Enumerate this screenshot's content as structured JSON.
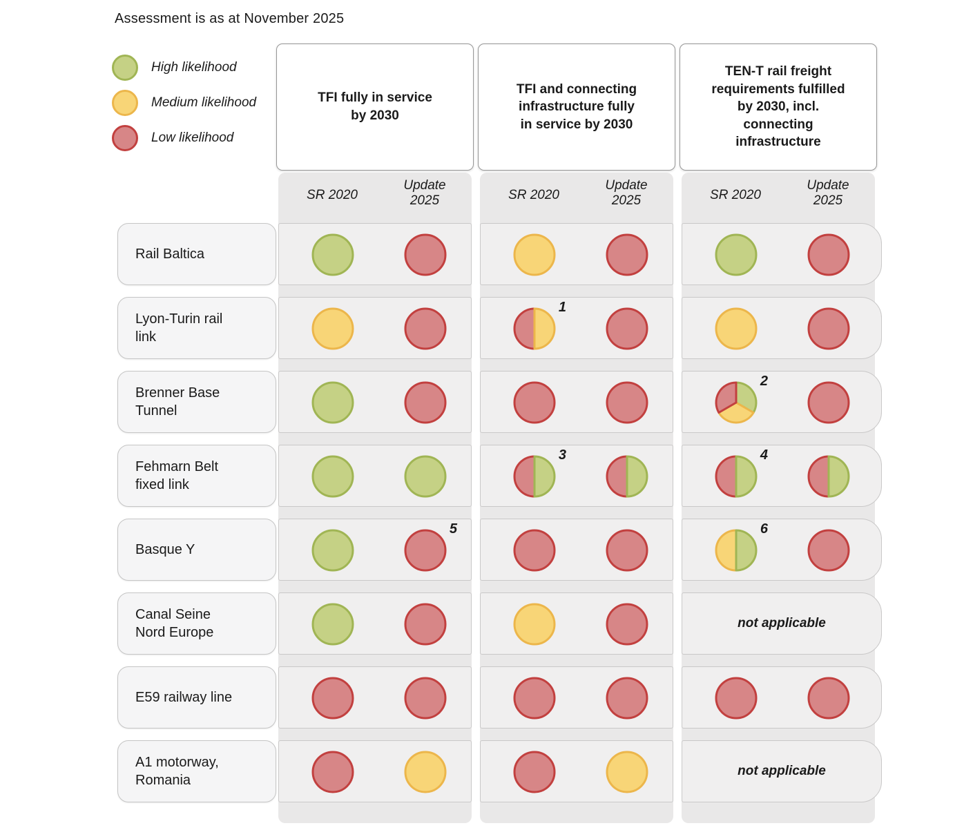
{
  "title": "Assessment is as at November 2025",
  "legend": [
    {
      "color_key": "green",
      "label": "High likelihood"
    },
    {
      "color_key": "yellow",
      "label": "Medium likelihood"
    },
    {
      "color_key": "red",
      "label": "Low likelihood"
    }
  ],
  "colors": {
    "green": {
      "fill": "#c5d185",
      "stroke": "#a0b554"
    },
    "yellow": {
      "fill": "#f8d577",
      "stroke": "#ecb64b"
    },
    "red": {
      "fill": "#d78687",
      "stroke": "#c2403f"
    }
  },
  "column_groups": [
    {
      "title": "TFI fully in service\nby 2030",
      "subcolumns": [
        "SR 2020",
        "Update\n2025"
      ]
    },
    {
      "title": "TFI and connecting\ninfrastructure fully\nin service by 2030",
      "subcolumns": [
        "SR 2020",
        "Update\n2025"
      ]
    },
    {
      "title": "TEN-T rail freight\nrequirements fulfilled\nby 2030, incl.\nconnecting\ninfrastructure",
      "subcolumns": [
        "SR 2020",
        "Update\n2025"
      ]
    }
  ],
  "not_applicable_label": "not applicable",
  "rows": [
    {
      "label": "Rail Baltica",
      "groups": [
        {
          "cells": [
            {
              "type": "full",
              "segments": [
                "green"
              ]
            },
            {
              "type": "full",
              "segments": [
                "red"
              ]
            }
          ]
        },
        {
          "cells": [
            {
              "type": "full",
              "segments": [
                "yellow"
              ]
            },
            {
              "type": "full",
              "segments": [
                "red"
              ]
            }
          ]
        },
        {
          "cells": [
            {
              "type": "full",
              "segments": [
                "green"
              ]
            },
            {
              "type": "full",
              "segments": [
                "red"
              ]
            }
          ]
        }
      ]
    },
    {
      "label": "Lyon-Turin rail\nlink",
      "groups": [
        {
          "cells": [
            {
              "type": "full",
              "segments": [
                "yellow"
              ]
            },
            {
              "type": "full",
              "segments": [
                "red"
              ]
            }
          ]
        },
        {
          "cells": [
            {
              "type": "half",
              "segments": [
                "red",
                "yellow"
              ],
              "note": "1"
            },
            {
              "type": "full",
              "segments": [
                "red"
              ]
            }
          ]
        },
        {
          "cells": [
            {
              "type": "full",
              "segments": [
                "yellow"
              ]
            },
            {
              "type": "full",
              "segments": [
                "red"
              ]
            }
          ]
        }
      ]
    },
    {
      "label": "Brenner Base\nTunnel",
      "groups": [
        {
          "cells": [
            {
              "type": "full",
              "segments": [
                "green"
              ]
            },
            {
              "type": "full",
              "segments": [
                "red"
              ]
            }
          ]
        },
        {
          "cells": [
            {
              "type": "full",
              "segments": [
                "red"
              ]
            },
            {
              "type": "full",
              "segments": [
                "red"
              ]
            }
          ]
        },
        {
          "cells": [
            {
              "type": "thirds",
              "segments": [
                "green",
                "yellow",
                "red"
              ],
              "note": "2"
            },
            {
              "type": "full",
              "segments": [
                "red"
              ]
            }
          ]
        }
      ]
    },
    {
      "label": "Fehmarn Belt\nfixed link",
      "groups": [
        {
          "cells": [
            {
              "type": "full",
              "segments": [
                "green"
              ]
            },
            {
              "type": "full",
              "segments": [
                "green"
              ]
            }
          ]
        },
        {
          "cells": [
            {
              "type": "half",
              "segments": [
                "red",
                "green"
              ],
              "note": "3"
            },
            {
              "type": "half",
              "segments": [
                "red",
                "green"
              ]
            }
          ]
        },
        {
          "cells": [
            {
              "type": "half",
              "segments": [
                "red",
                "green"
              ],
              "note": "4"
            },
            {
              "type": "half",
              "segments": [
                "red",
                "green"
              ]
            }
          ]
        }
      ]
    },
    {
      "label": "Basque Y",
      "groups": [
        {
          "cells": [
            {
              "type": "full",
              "segments": [
                "green"
              ]
            },
            {
              "type": "full",
              "segments": [
                "red"
              ],
              "note": "5"
            }
          ]
        },
        {
          "cells": [
            {
              "type": "full",
              "segments": [
                "red"
              ]
            },
            {
              "type": "full",
              "segments": [
                "red"
              ]
            }
          ]
        },
        {
          "cells": [
            {
              "type": "half",
              "segments": [
                "yellow",
                "green"
              ],
              "note": "6"
            },
            {
              "type": "full",
              "segments": [
                "red"
              ]
            }
          ]
        }
      ]
    },
    {
      "label": "Canal Seine\nNord Europe",
      "groups": [
        {
          "cells": [
            {
              "type": "full",
              "segments": [
                "green"
              ]
            },
            {
              "type": "full",
              "segments": [
                "red"
              ]
            }
          ]
        },
        {
          "cells": [
            {
              "type": "full",
              "segments": [
                "yellow"
              ]
            },
            {
              "type": "full",
              "segments": [
                "red"
              ]
            }
          ]
        },
        {
          "na": true
        }
      ]
    },
    {
      "label": "E59 railway line",
      "groups": [
        {
          "cells": [
            {
              "type": "full",
              "segments": [
                "red"
              ]
            },
            {
              "type": "full",
              "segments": [
                "red"
              ]
            }
          ]
        },
        {
          "cells": [
            {
              "type": "full",
              "segments": [
                "red"
              ]
            },
            {
              "type": "full",
              "segments": [
                "red"
              ]
            }
          ]
        },
        {
          "cells": [
            {
              "type": "full",
              "segments": [
                "red"
              ]
            },
            {
              "type": "full",
              "segments": [
                "red"
              ]
            }
          ]
        }
      ]
    },
    {
      "label": "A1 motorway,\nRomania",
      "groups": [
        {
          "cells": [
            {
              "type": "full",
              "segments": [
                "red"
              ]
            },
            {
              "type": "full",
              "segments": [
                "yellow"
              ]
            }
          ]
        },
        {
          "cells": [
            {
              "type": "full",
              "segments": [
                "red"
              ]
            },
            {
              "type": "full",
              "segments": [
                "yellow"
              ]
            }
          ]
        },
        {
          "na": true
        }
      ]
    }
  ],
  "chart_data": {
    "type": "table",
    "title": "Assessment is as at November 2025",
    "legend": {
      "green": "High likelihood",
      "yellow": "Medium likelihood",
      "red": "Low likelihood"
    },
    "columns": [
      "TFI fully in service by 2030 — SR 2020",
      "TFI fully in service by 2030 — Update 2025",
      "TFI and connecting infrastructure fully in service by 2030 — SR 2020",
      "TFI and connecting infrastructure fully in service by 2030 — Update 2025",
      "TEN-T rail freight requirements fulfilled by 2030, incl. connecting infrastructure — SR 2020",
      "TEN-T rail freight requirements fulfilled by 2030, incl. connecting infrastructure — Update 2025"
    ],
    "rows": [
      {
        "project": "Rail Baltica",
        "values": [
          "high",
          "low",
          "medium",
          "low",
          "high",
          "low"
        ]
      },
      {
        "project": "Lyon-Turin rail link",
        "values": [
          "medium",
          "low",
          "low/medium [1]",
          "low",
          "medium",
          "low"
        ]
      },
      {
        "project": "Brenner Base Tunnel",
        "values": [
          "high",
          "low",
          "low",
          "low",
          "high/medium/low [2]",
          "low"
        ]
      },
      {
        "project": "Fehmarn Belt fixed link",
        "values": [
          "high",
          "high",
          "low/high [3]",
          "low/high",
          "low/high [4]",
          "low/high"
        ]
      },
      {
        "project": "Basque Y",
        "values": [
          "high",
          "low [5]",
          "low",
          "low",
          "medium/high [6]",
          "low"
        ]
      },
      {
        "project": "Canal Seine Nord Europe",
        "values": [
          "high",
          "low",
          "medium",
          "low",
          "not applicable",
          "not applicable"
        ]
      },
      {
        "project": "E59 railway line",
        "values": [
          "low",
          "low",
          "low",
          "low",
          "low",
          "low"
        ]
      },
      {
        "project": "A1 motorway, Romania",
        "values": [
          "low",
          "medium",
          "low",
          "medium",
          "not applicable",
          "not applicable"
        ]
      }
    ]
  }
}
